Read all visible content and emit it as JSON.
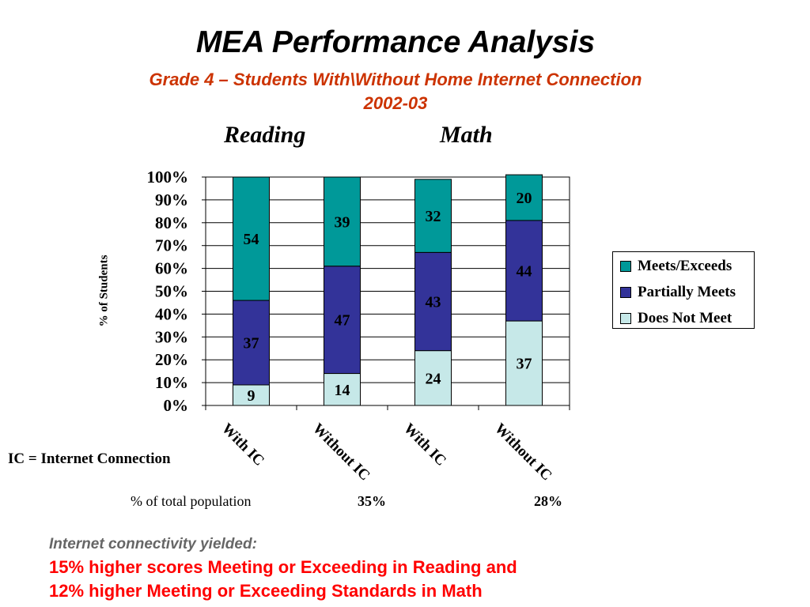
{
  "slide": {
    "title": "MEA Performance Analysis",
    "subtitle_line1": "Grade 4 – Students With\\Without Home Internet Connection",
    "subtitle_line2": "2002-03",
    "panel_reading": "Reading",
    "panel_math": "Math",
    "ic_note": "IC = Internet Connection",
    "population_label": "% of total population",
    "population_with_ic_reading": "35%",
    "population_with_ic_math": "28%",
    "conclusion_head": "Internet connectivity yielded:",
    "conclusion_line1": "15% higher scores Meeting or Exceeding in Reading and",
    "conclusion_line2": "12% higher Meeting or Exceeding Standards in Math"
  },
  "colors": {
    "title": "#000000",
    "subtitle": "#cc3300",
    "conclusion": "#ff0000",
    "conclusion_head": "#666666"
  },
  "chart_data": {
    "type": "bar",
    "stacked": true,
    "ylabel": "% of Students",
    "ylim": [
      0,
      100
    ],
    "yticks": [
      "0%",
      "10%",
      "20%",
      "30%",
      "40%",
      "50%",
      "60%",
      "70%",
      "80%",
      "90%",
      "100%"
    ],
    "categories": [
      "With IC",
      "Without IC",
      "With IC",
      "Without IC"
    ],
    "series": [
      {
        "name": "Does Not Meet",
        "color": "#c6e8e8",
        "values": [
          9,
          14,
          24,
          37
        ]
      },
      {
        "name": "Partially Meets",
        "color": "#333399",
        "values": [
          37,
          47,
          43,
          44
        ]
      },
      {
        "name": "Meets/Exceeds",
        "color": "#009999",
        "values": [
          54,
          39,
          32,
          20
        ]
      }
    ],
    "legend_order": [
      "Meets/Exceeds",
      "Partially Meets",
      "Does Not Meet"
    ],
    "legend_position": "right",
    "grid": true
  }
}
